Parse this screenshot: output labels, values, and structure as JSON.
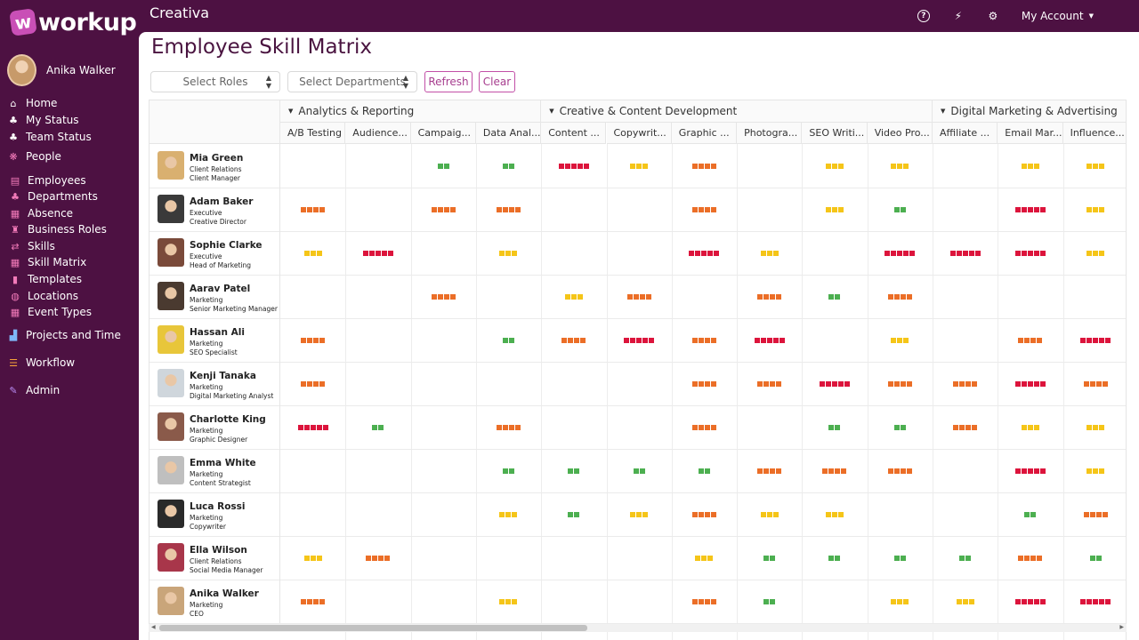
{
  "app": {
    "logo_text": "workup",
    "company": "Creativa",
    "account_label": "My Account"
  },
  "user": {
    "name": "Anika Walker"
  },
  "nav": [
    {
      "label": "Home",
      "icon": "home-icon",
      "glyph": "⌂",
      "accent": ""
    },
    {
      "label": "My Status",
      "icon": "org-chart-icon",
      "glyph": "♣",
      "accent": ""
    },
    {
      "label": "Team Status",
      "icon": "org-chart-icon",
      "glyph": "♣",
      "accent": ""
    },
    {
      "label": "People",
      "icon": "paw-icon",
      "glyph": "❋",
      "accent": "ico-pink"
    },
    {
      "label": "Employees",
      "icon": "id-card-icon",
      "glyph": "▤",
      "accent": "ico-pink"
    },
    {
      "label": "Departments",
      "icon": "org-chart-icon",
      "glyph": "♣",
      "accent": "ico-pink"
    },
    {
      "label": "Absence",
      "icon": "calendar-icon",
      "glyph": "▦",
      "accent": "ico-pink"
    },
    {
      "label": "Business Roles",
      "icon": "trophy-icon",
      "glyph": "♜",
      "accent": "ico-pink"
    },
    {
      "label": "Skills",
      "icon": "shuffle-icon",
      "glyph": "⇄",
      "accent": "ico-pink"
    },
    {
      "label": "Skill Matrix",
      "icon": "grid-icon",
      "glyph": "▦",
      "accent": "ico-pink"
    },
    {
      "label": "Templates",
      "icon": "file-icon",
      "glyph": "▮",
      "accent": "ico-pink"
    },
    {
      "label": "Locations",
      "icon": "globe-icon",
      "glyph": "◍",
      "accent": "ico-pink"
    },
    {
      "label": "Event Types",
      "icon": "calendar-icon",
      "glyph": "▦",
      "accent": "ico-pink"
    },
    {
      "label": "Projects and Time",
      "icon": "bar-chart-icon",
      "glyph": "▟",
      "accent": "ico-blue"
    },
    {
      "label": "Workflow",
      "icon": "list-icon",
      "glyph": "☰",
      "accent": "ico-orange"
    },
    {
      "label": "Admin",
      "icon": "wrench-icon",
      "glyph": "✎",
      "accent": "ico-purple"
    }
  ],
  "page": {
    "title": "Employee Skill Matrix"
  },
  "filters": {
    "roles_placeholder": "Select Roles",
    "departments_placeholder": "Select Departments",
    "refresh_label": "Refresh",
    "clear_label": "Clear"
  },
  "groups": [
    {
      "label": "Analytics & Reporting",
      "span": 4
    },
    {
      "label": "Creative & Content Development",
      "span": 6
    },
    {
      "label": "Digital Marketing & Advertising",
      "span": 4
    }
  ],
  "columns": [
    "A/B Testing",
    "Audience...",
    "Campaig...",
    "Data Anal...",
    "Content ...",
    "Copywrit...",
    "Graphic ...",
    "Photogra...",
    "SEO Writi...",
    "Video Pro...",
    "Affiliate ...",
    "Email Mar...",
    "Influence...",
    ""
  ],
  "levels": {
    "2": "#4caf50",
    "3": "#f5c518",
    "4": "#eb6e27",
    "5": "#dc143c"
  },
  "employees": [
    {
      "name": "Mia Green",
      "department": "Client Relations",
      "role": "Client Manager",
      "skills": [
        0,
        0,
        2,
        2,
        5,
        3,
        4,
        0,
        3,
        3,
        0,
        3,
        3,
        0
      ]
    },
    {
      "name": "Adam Baker",
      "department": "Executive",
      "role": "Creative Director",
      "skills": [
        4,
        0,
        4,
        4,
        0,
        0,
        4,
        0,
        3,
        2,
        0,
        5,
        3,
        0
      ]
    },
    {
      "name": "Sophie Clarke",
      "department": "Executive",
      "role": "Head of Marketing",
      "skills": [
        3,
        5,
        0,
        3,
        0,
        0,
        5,
        3,
        0,
        5,
        5,
        5,
        3,
        0
      ]
    },
    {
      "name": "Aarav Patel",
      "department": "Marketing",
      "role": "Senior Marketing Manager",
      "skills": [
        0,
        0,
        4,
        0,
        3,
        4,
        0,
        4,
        2,
        4,
        0,
        0,
        0,
        0
      ]
    },
    {
      "name": "Hassan Ali",
      "department": "Marketing",
      "role": "SEO Specialist",
      "skills": [
        4,
        0,
        0,
        2,
        4,
        5,
        4,
        5,
        0,
        3,
        0,
        4,
        5,
        0
      ]
    },
    {
      "name": "Kenji Tanaka",
      "department": "Marketing",
      "role": "Digital Marketing Analyst",
      "skills": [
        4,
        0,
        0,
        0,
        0,
        0,
        4,
        4,
        5,
        4,
        4,
        5,
        4,
        0
      ]
    },
    {
      "name": "Charlotte King",
      "department": "Marketing",
      "role": "Graphic Designer",
      "skills": [
        5,
        2,
        0,
        4,
        0,
        0,
        4,
        0,
        2,
        2,
        4,
        3,
        3,
        0
      ]
    },
    {
      "name": "Emma White",
      "department": "Marketing",
      "role": "Content Strategist",
      "skills": [
        0,
        0,
        0,
        2,
        2,
        2,
        2,
        4,
        4,
        4,
        0,
        5,
        3,
        0
      ]
    },
    {
      "name": "Luca Rossi",
      "department": "Marketing",
      "role": "Copywriter",
      "skills": [
        0,
        0,
        0,
        3,
        2,
        3,
        4,
        3,
        3,
        0,
        0,
        2,
        4,
        0
      ]
    },
    {
      "name": "Ella Wilson",
      "department": "Client Relations",
      "role": "Social Media Manager",
      "skills": [
        3,
        4,
        0,
        0,
        0,
        0,
        3,
        2,
        2,
        2,
        2,
        4,
        2,
        0
      ]
    },
    {
      "name": "Anika Walker",
      "department": "Marketing",
      "role": "CEO",
      "skills": [
        4,
        0,
        0,
        3,
        0,
        0,
        4,
        2,
        0,
        3,
        3,
        5,
        5,
        0
      ]
    }
  ]
}
